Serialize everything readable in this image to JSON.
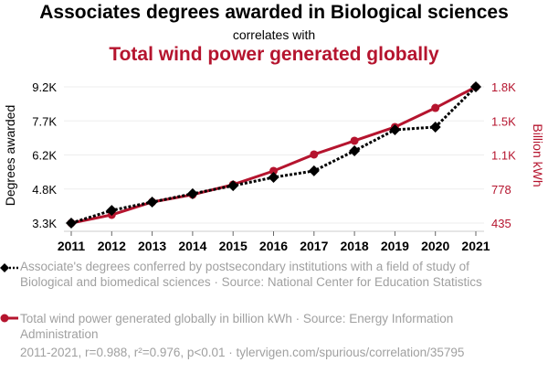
{
  "header": {
    "title": "Associates degrees awarded in Biological sciences",
    "subtitle": "correlates with",
    "title2": "Total wind power generated globally"
  },
  "legend": {
    "series1": "Associate's degrees conferred by postsecondary institutions with a field of study of Biological and biomedical sciences · Source: National Center for Education Statistics",
    "series2": "Total wind power generated globally in billion kWh · Source: Energy Information Administration"
  },
  "footer": "2011-2021, r=0.988, r²=0.976, p<0.01 · tylervigen.com/spurious/correlation/35795",
  "colors": {
    "series1": "#000000",
    "series2": "#b5142e",
    "grid": "#eeeeee",
    "axis": "#cccccc"
  },
  "chart_data": {
    "type": "line",
    "title": "Associates degrees awarded in Biological sciences correlates with Total wind power generated globally",
    "x": [
      2011,
      2012,
      2013,
      2014,
      2015,
      2016,
      2017,
      2018,
      2019,
      2020,
      2021
    ],
    "x_tick_labels": [
      "2011",
      "2012",
      "2013",
      "2014",
      "2015",
      "2016",
      "2017",
      "2018",
      "2019",
      "2020",
      "2021"
    ],
    "series": [
      {
        "name": "Associate's degrees conferred (Biological and biomedical sciences)",
        "axis": "left",
        "style": "dotted, diamond markers",
        "values": [
          3300,
          3850,
          4210,
          4570,
          4920,
          5280,
          5560,
          6430,
          7340,
          7460,
          9200
        ]
      },
      {
        "name": "Total wind power generated globally (billion kWh)",
        "axis": "right",
        "style": "solid, circle markers",
        "values": [
          435,
          518,
          647,
          721,
          822,
          960,
          1126,
          1264,
          1402,
          1595,
          1807
        ]
      }
    ],
    "left_axis": {
      "label": "Degrees awarded",
      "ticks": [
        "3.3K",
        "4.8K",
        "6.2K",
        "7.7K",
        "9.2K"
      ],
      "tick_values": [
        3300,
        4775,
        6250,
        7725,
        9200
      ],
      "ylim": [
        3300,
        9200
      ]
    },
    "right_axis": {
      "label": "Billion kWh",
      "ticks": [
        "435",
        "778",
        "1.1K",
        "1.5K",
        "1.8K"
      ],
      "tick_values": [
        435,
        778,
        1121,
        1464,
        1807
      ],
      "ylim": [
        435,
        1807
      ]
    },
    "grid": true,
    "legend_position": "bottom"
  }
}
